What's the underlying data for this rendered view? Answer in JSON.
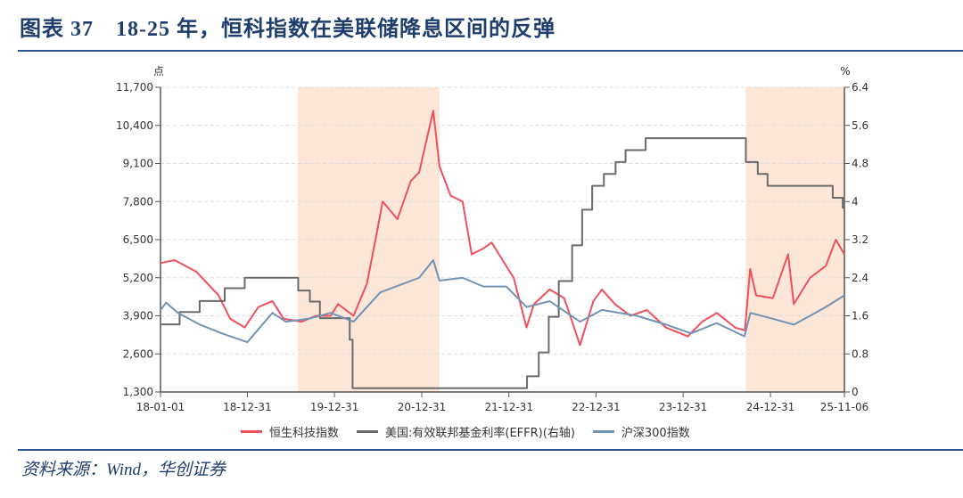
{
  "title": "图表 37　18-25 年，恒科指数在美联储降息区间的反弹",
  "source": "资料来源：Wind，华创证券",
  "chart_data": {
    "type": "line",
    "title": "",
    "left_axis_unit": "点",
    "right_axis_unit": "%",
    "ylim_left": [
      1300,
      11700
    ],
    "ylim_right": [
      0,
      6.4
    ],
    "yticks_left": [
      "1,300",
      "2,600",
      "3,900",
      "5,200",
      "6,500",
      "7,800",
      "9,100",
      "10,400",
      "11,700"
    ],
    "yticks_left_values": [
      1300,
      2600,
      3900,
      5200,
      6500,
      7800,
      9100,
      10400,
      11700
    ],
    "yticks_right": [
      "0",
      "0.8",
      "1.6",
      "2.4",
      "3.2",
      "4",
      "4.8",
      "5.6",
      "6.4"
    ],
    "yticks_right_values": [
      0,
      0.8,
      1.6,
      2.4,
      3.2,
      4,
      4.8,
      5.6,
      6.4
    ],
    "xlim": [
      "2018-01-01",
      "2025-11-06"
    ],
    "xticks": [
      "18-01-01",
      "18-12-31",
      "19-12-31",
      "20-12-31",
      "21-12-31",
      "22-12-31",
      "23-12-31",
      "24-12-31",
      "25-11-06"
    ],
    "xticks_dates": [
      "2018-01-01",
      "2018-12-31",
      "2019-12-31",
      "2020-12-31",
      "2021-12-31",
      "2022-12-31",
      "2023-12-31",
      "2024-12-31",
      "2025-11-06"
    ],
    "grid": "horizontal dashed",
    "legend_placement": "bottom",
    "shaded_periods": [
      [
        "2019-07-31",
        "2021-03-15"
      ],
      [
        "2024-09-18",
        "2025-11-06"
      ]
    ],
    "shade_color": "#fbe6d8",
    "series": [
      {
        "name": "恒生科技指数",
        "axis": "left",
        "color": "#f0505e",
        "step": false,
        "points": [
          [
            "2018-01-01",
            5700
          ],
          [
            "2018-03-01",
            5800
          ],
          [
            "2018-06-01",
            5400
          ],
          [
            "2018-09-01",
            4600
          ],
          [
            "2018-10-20",
            3800
          ],
          [
            "2018-12-20",
            3500
          ],
          [
            "2019-02-15",
            4200
          ],
          [
            "2019-04-15",
            4400
          ],
          [
            "2019-06-01",
            3800
          ],
          [
            "2019-08-15",
            3700
          ],
          [
            "2019-10-15",
            3900
          ],
          [
            "2019-12-15",
            3900
          ],
          [
            "2020-01-15",
            4300
          ],
          [
            "2020-03-20",
            3900
          ],
          [
            "2020-05-15",
            5000
          ],
          [
            "2020-06-20",
            6500
          ],
          [
            "2020-07-20",
            7800
          ],
          [
            "2020-09-20",
            7200
          ],
          [
            "2020-11-15",
            8500
          ],
          [
            "2020-12-20",
            8800
          ],
          [
            "2021-02-17",
            10900
          ],
          [
            "2021-03-15",
            9000
          ],
          [
            "2021-05-01",
            8000
          ],
          [
            "2021-06-20",
            7800
          ],
          [
            "2021-07-28",
            6000
          ],
          [
            "2021-09-15",
            6200
          ],
          [
            "2021-10-20",
            6400
          ],
          [
            "2021-12-20",
            5600
          ],
          [
            "2022-01-20",
            5200
          ],
          [
            "2022-03-15",
            3500
          ],
          [
            "2022-04-15",
            4300
          ],
          [
            "2022-06-20",
            4800
          ],
          [
            "2022-08-20",
            4500
          ],
          [
            "2022-10-25",
            2900
          ],
          [
            "2022-12-20",
            4400
          ],
          [
            "2023-01-25",
            4800
          ],
          [
            "2023-03-20",
            4300
          ],
          [
            "2023-05-25",
            3900
          ],
          [
            "2023-08-01",
            4100
          ],
          [
            "2023-10-20",
            3500
          ],
          [
            "2024-01-20",
            3200
          ],
          [
            "2024-03-20",
            3700
          ],
          [
            "2024-05-20",
            4000
          ],
          [
            "2024-08-05",
            3500
          ],
          [
            "2024-09-15",
            3400
          ],
          [
            "2024-10-07",
            5500
          ],
          [
            "2024-11-01",
            4600
          ],
          [
            "2025-01-10",
            4500
          ],
          [
            "2025-03-15",
            6000
          ],
          [
            "2025-04-08",
            4300
          ],
          [
            "2025-06-15",
            5200
          ],
          [
            "2025-08-20",
            5600
          ],
          [
            "2025-10-01",
            6500
          ],
          [
            "2025-11-06",
            6000
          ]
        ]
      },
      {
        "name": "美国:有效联邦基金利率(EFFR)(右轴)",
        "axis": "right",
        "color": "#6b6b6b",
        "step": true,
        "points": [
          [
            "2018-01-01",
            1.42
          ],
          [
            "2018-03-22",
            1.68
          ],
          [
            "2018-06-14",
            1.91
          ],
          [
            "2018-09-27",
            2.18
          ],
          [
            "2018-12-20",
            2.4
          ],
          [
            "2019-08-01",
            2.13
          ],
          [
            "2019-09-19",
            1.9
          ],
          [
            "2019-10-31",
            1.55
          ],
          [
            "2020-03-04",
            1.1
          ],
          [
            "2020-03-16",
            0.08
          ],
          [
            "2021-06-17",
            0.08
          ],
          [
            "2022-03-17",
            0.33
          ],
          [
            "2022-05-05",
            0.83
          ],
          [
            "2022-06-16",
            1.58
          ],
          [
            "2022-07-28",
            2.33
          ],
          [
            "2022-09-22",
            3.08
          ],
          [
            "2022-11-03",
            3.83
          ],
          [
            "2022-12-15",
            4.33
          ],
          [
            "2023-02-02",
            4.58
          ],
          [
            "2023-03-23",
            4.83
          ],
          [
            "2023-05-04",
            5.08
          ],
          [
            "2023-07-27",
            5.33
          ],
          [
            "2024-09-19",
            4.83
          ],
          [
            "2024-11-08",
            4.58
          ],
          [
            "2024-12-19",
            4.33
          ],
          [
            "2025-09-18",
            4.08
          ],
          [
            "2025-10-30",
            3.87
          ],
          [
            "2025-11-06",
            3.87
          ]
        ]
      },
      {
        "name": "沪深300指数",
        "axis": "left",
        "color": "#7393b3",
        "step": false,
        "points": [
          [
            "2018-01-01",
            4100
          ],
          [
            "2018-01-25",
            4350
          ],
          [
            "2018-03-15",
            4000
          ],
          [
            "2018-06-15",
            3600
          ],
          [
            "2018-09-15",
            3300
          ],
          [
            "2018-12-31",
            3000
          ],
          [
            "2019-04-15",
            4000
          ],
          [
            "2019-06-10",
            3700
          ],
          [
            "2019-09-15",
            3800
          ],
          [
            "2019-12-15",
            4000
          ],
          [
            "2020-03-20",
            3700
          ],
          [
            "2020-07-10",
            4700
          ],
          [
            "2020-12-20",
            5200
          ],
          [
            "2021-02-17",
            5800
          ],
          [
            "2021-03-15",
            5100
          ],
          [
            "2021-06-20",
            5200
          ],
          [
            "2021-09-15",
            4900
          ],
          [
            "2021-12-20",
            4900
          ],
          [
            "2022-03-15",
            4200
          ],
          [
            "2022-06-20",
            4400
          ],
          [
            "2022-10-25",
            3700
          ],
          [
            "2023-01-25",
            4100
          ],
          [
            "2023-06-20",
            3900
          ],
          [
            "2023-10-20",
            3600
          ],
          [
            "2024-02-02",
            3300
          ],
          [
            "2024-05-20",
            3650
          ],
          [
            "2024-09-13",
            3200
          ],
          [
            "2024-10-08",
            4000
          ],
          [
            "2025-01-10",
            3800
          ],
          [
            "2025-04-08",
            3600
          ],
          [
            "2025-06-15",
            3900
          ],
          [
            "2025-08-20",
            4200
          ],
          [
            "2025-11-06",
            4600
          ]
        ]
      }
    ]
  }
}
